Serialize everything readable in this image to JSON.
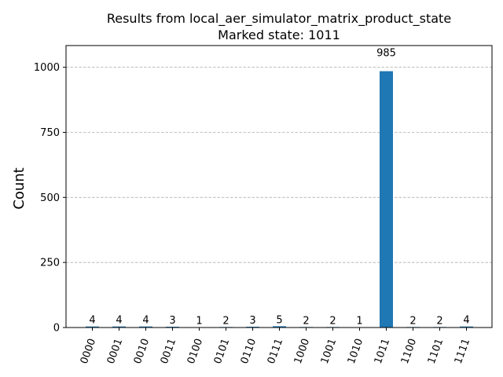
{
  "chart_data": {
    "type": "bar",
    "title": "Results from local_aer_simulator_matrix_product_state",
    "subtitle": "Marked state: 1011",
    "xlabel": "",
    "ylabel": "Count",
    "categories": [
      "0000",
      "0001",
      "0010",
      "0011",
      "0100",
      "0101",
      "0110",
      "0111",
      "1000",
      "1001",
      "1010",
      "1011",
      "1100",
      "1101",
      "1111"
    ],
    "values": [
      4,
      4,
      4,
      3,
      1,
      2,
      3,
      5,
      2,
      2,
      1,
      985,
      2,
      2,
      4
    ],
    "ylim": [
      0,
      1083.5
    ],
    "yticks": [
      0,
      250,
      500,
      750,
      1000
    ],
    "grid": "y-dashed",
    "bar_color": "#1f77b4",
    "legend": "none"
  }
}
